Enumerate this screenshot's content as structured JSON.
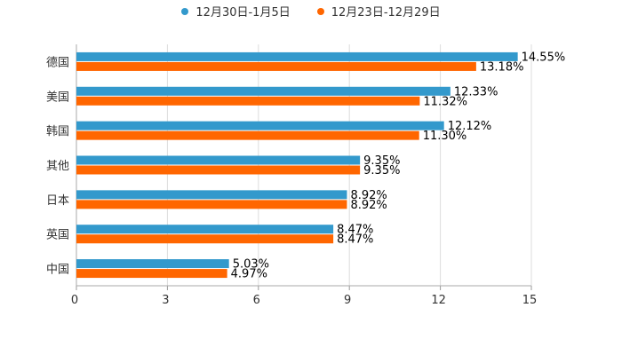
{
  "chart_data": {
    "type": "bar",
    "orientation": "horizontal",
    "title": "",
    "xlabel": "",
    "ylabel": "",
    "xlim": [
      0,
      15
    ],
    "x_ticks": [
      "0",
      "3",
      "6",
      "9",
      "12",
      "15"
    ],
    "grid": true,
    "legend_position": "top-center",
    "categories": [
      "德国",
      "美国",
      "韩国",
      "其他",
      "日本",
      "英国",
      "中国"
    ],
    "series": [
      {
        "name": "12月30日-1月5日",
        "color": "#3399cc",
        "values": [
          14.55,
          12.33,
          12.12,
          9.35,
          8.92,
          8.47,
          5.03
        ],
        "labels": [
          "14.55%",
          "12.33%",
          "12.12%",
          "9.35%",
          "8.92%",
          "8.47%",
          "5.03%"
        ]
      },
      {
        "name": "12月23日-12月29日",
        "color": "#ff6600",
        "values": [
          13.18,
          11.32,
          11.3,
          9.35,
          8.92,
          8.47,
          4.97
        ],
        "labels": [
          "13.18%",
          "11.32%",
          "11.30%",
          "9.35%",
          "8.92%",
          "8.47%",
          "4.97%"
        ]
      }
    ]
  }
}
